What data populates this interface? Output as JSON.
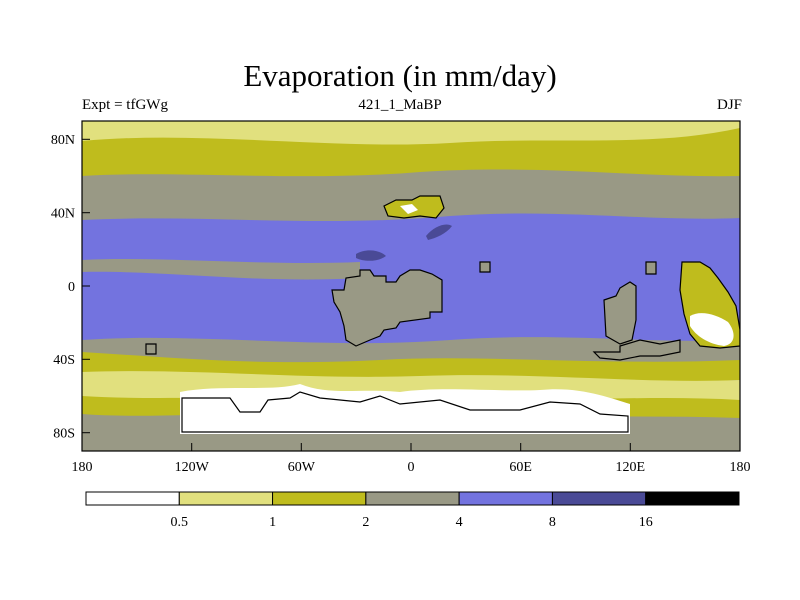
{
  "chart_data": {
    "type": "heatmap",
    "title": "Evaporation (in mm/day)",
    "left_string": "Expt = tfGWg",
    "center_string": "421_1_MaBP",
    "right_string": "DJF",
    "x_ticks": [
      "180",
      "120W",
      "60W",
      "0",
      "60E",
      "120E",
      "180"
    ],
    "x_tick_values": [
      -180,
      -120,
      -60,
      0,
      60,
      120,
      180
    ],
    "y_ticks": [
      "80N",
      "40N",
      "0",
      "40S",
      "80S"
    ],
    "y_tick_values": [
      80,
      40,
      0,
      -40,
      -80
    ],
    "xlim": [
      -180,
      180
    ],
    "ylim": [
      -90,
      90
    ],
    "colorbar": {
      "levels": [
        "0.5",
        "1",
        "2",
        "4",
        "8",
        "16"
      ],
      "level_values": [
        0.5,
        1,
        2,
        4,
        8,
        16
      ],
      "colors": [
        "#ffffff",
        "#e1e07e",
        "#bfbc1d",
        "#999985",
        "#7373df",
        "#4a4a96",
        "#000000"
      ]
    }
  }
}
